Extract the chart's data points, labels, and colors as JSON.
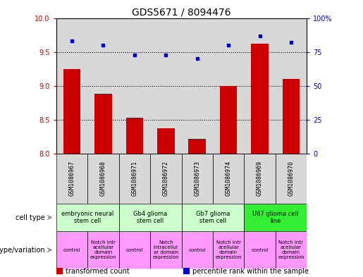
{
  "title": "GDS5671 / 8094476",
  "samples": [
    "GSM1086967",
    "GSM1086968",
    "GSM1086971",
    "GSM1086972",
    "GSM1086973",
    "GSM1086974",
    "GSM1086969",
    "GSM1086970"
  ],
  "transformed_count": [
    9.25,
    8.88,
    8.53,
    8.38,
    8.22,
    9.0,
    9.62,
    9.1
  ],
  "percentile_rank": [
    83,
    80,
    73,
    73,
    70,
    80,
    87,
    82
  ],
  "ylim_left": [
    8.0,
    10.0
  ],
  "ylim_right": [
    0,
    100
  ],
  "yticks_left": [
    8.0,
    8.5,
    9.0,
    9.5,
    10.0
  ],
  "yticks_right": [
    0,
    25,
    50,
    75,
    100
  ],
  "cell_type_groups": [
    {
      "label": "embryonic neural\nstem cell",
      "start": 0,
      "end": 1,
      "color": "#ccffcc"
    },
    {
      "label": "Gb4 glioma\nstem cell",
      "start": 2,
      "end": 3,
      "color": "#ccffcc"
    },
    {
      "label": "Gb7 glioma\nstem cell",
      "start": 4,
      "end": 5,
      "color": "#ccffcc"
    },
    {
      "label": "U87 glioma cell\nline",
      "start": 6,
      "end": 7,
      "color": "#33ee33"
    }
  ],
  "genotype_groups": [
    {
      "label": "control",
      "start": 0,
      "end": 0,
      "color": "#ff99ff"
    },
    {
      "label": "Notch intr\nacellular\ndomain\nexpression",
      "start": 1,
      "end": 1,
      "color": "#ff99ff"
    },
    {
      "label": "control",
      "start": 2,
      "end": 2,
      "color": "#ff99ff"
    },
    {
      "label": "Notch\nintracellul\nar domain\nexpression",
      "start": 3,
      "end": 3,
      "color": "#ff99ff"
    },
    {
      "label": "control",
      "start": 4,
      "end": 4,
      "color": "#ff99ff"
    },
    {
      "label": "Notch intr\nacellular\ndomain\nexpression",
      "start": 5,
      "end": 5,
      "color": "#ff99ff"
    },
    {
      "label": "control",
      "start": 6,
      "end": 6,
      "color": "#ff99ff"
    },
    {
      "label": "Notch intr\nacellular\ndomain\nexpression",
      "start": 7,
      "end": 7,
      "color": "#ff99ff"
    }
  ],
  "bar_color": "#cc0000",
  "dot_color": "#0000cc",
  "bg_color": "#d8d8d8",
  "title_fontsize": 10,
  "tick_fontsize": 7,
  "sample_fontsize": 6,
  "label_fontsize": 7,
  "legend_fontsize": 7,
  "cell_type_fontsize": 6,
  "geno_fontsize": 5
}
